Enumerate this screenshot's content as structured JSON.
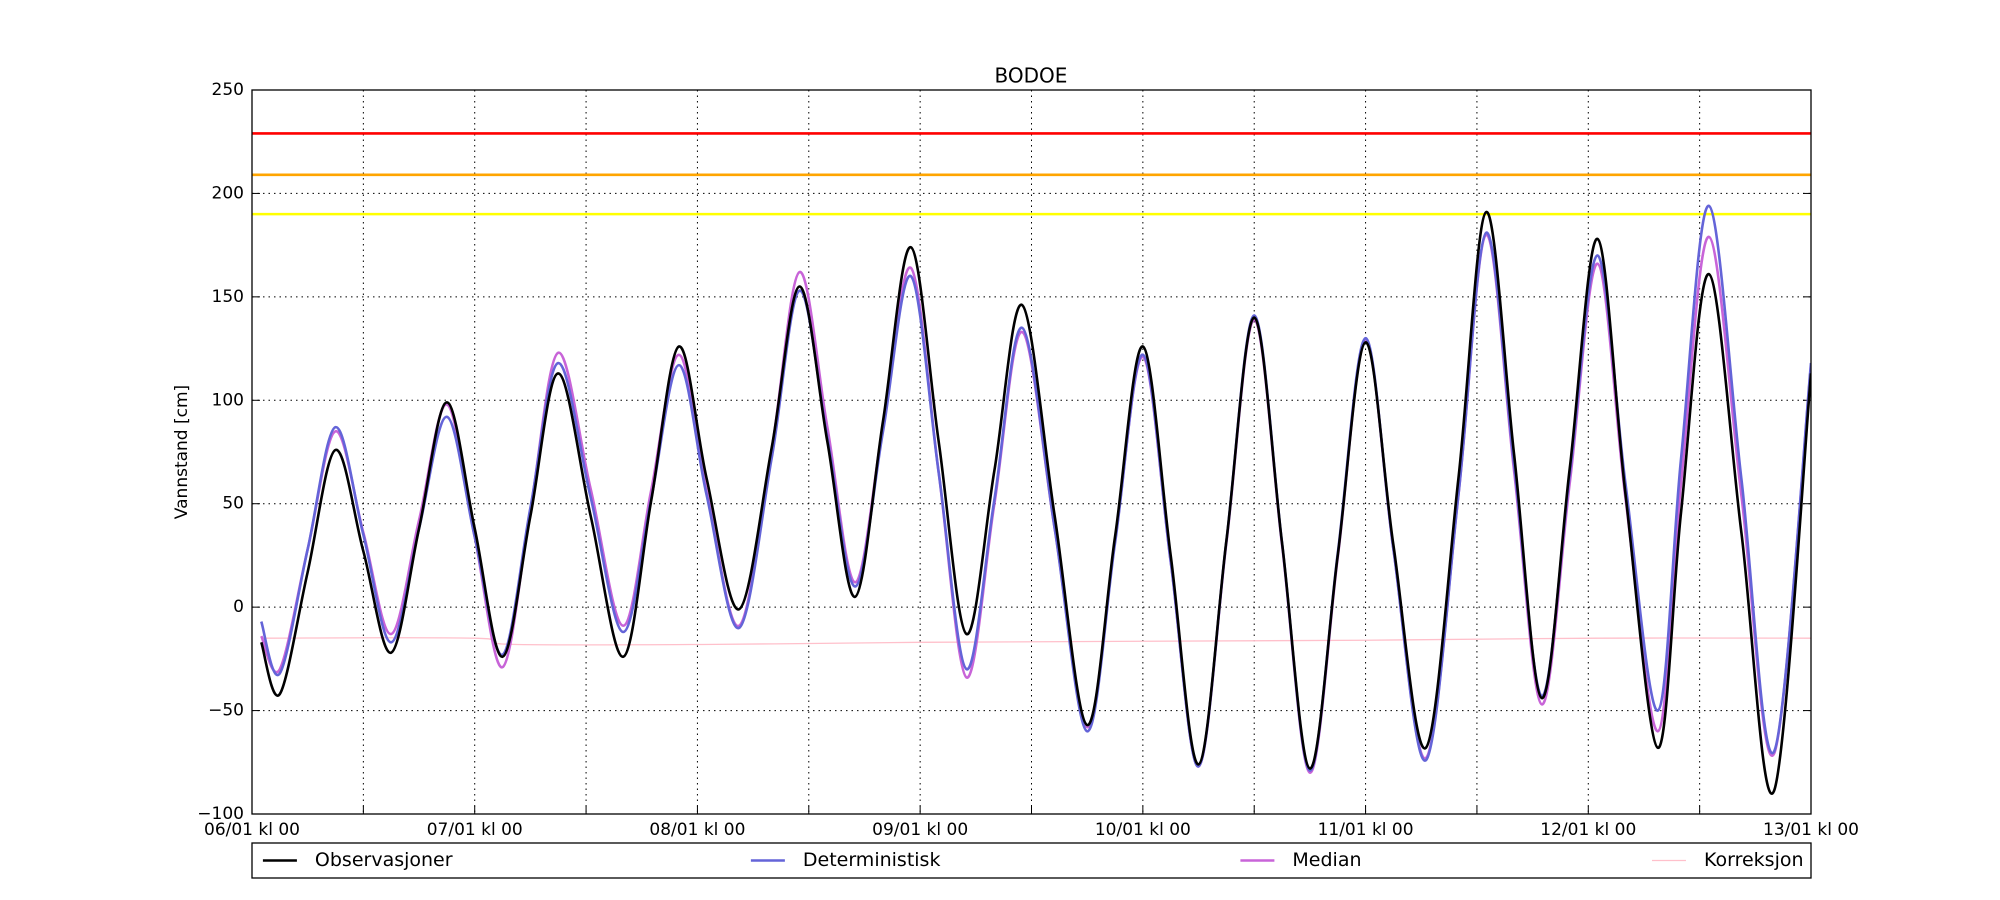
{
  "chart_data": {
    "type": "line",
    "title": "BODOE",
    "ylabel": "Vannstand [cm]",
    "x": [
      1,
      3,
      6,
      9,
      12,
      15,
      18,
      21,
      24,
      27,
      30,
      33,
      36.5,
      40,
      43,
      46,
      49,
      52.5,
      56,
      59,
      62,
      65,
      68,
      71,
      74,
      77,
      80,
      83,
      86.5,
      90,
      93,
      96,
      99,
      102,
      105,
      108,
      111,
      114,
      117,
      120,
      123,
      126.5,
      130,
      133,
      136,
      139,
      142,
      145,
      148,
      151.5,
      154,
      157,
      160.5,
      164,
      168
    ],
    "series": [
      {
        "name": "Observasjoner",
        "color": "#000000",
        "values": [
          -17,
          -42,
          17,
          76,
          27,
          -22,
          38,
          99,
          38,
          -24,
          44,
          113,
          44,
          -24,
          51,
          126,
          62,
          -1,
          77,
          155,
          80,
          5,
          90,
          174,
          80,
          -13,
          66,
          146,
          44,
          -57,
          34,
          126,
          25,
          -76,
          32,
          140,
          31,
          -78,
          25,
          128,
          30,
          -68,
          62,
          191,
          74,
          -44,
          67,
          178,
          55,
          -68,
          46,
          161,
          36,
          -89,
          113
        ]
      },
      {
        "name": "Deterministisk",
        "color": "#6464d8",
        "values": [
          -7,
          -32,
          28,
          87,
          35,
          -17,
          38,
          92,
          34,
          -23,
          48,
          118,
          53,
          -12,
          52,
          117,
          54,
          -10,
          72,
          153,
          82,
          10,
          85,
          160,
          65,
          -30,
          52,
          135,
          38,
          -60,
          31,
          122,
          22,
          -77,
          32,
          141,
          31,
          -79,
          26,
          130,
          28,
          -74,
          54,
          181,
          69,
          -43,
          64,
          170,
          60,
          -50,
          72,
          194,
          62,
          -70,
          118
        ]
      },
      {
        "name": "Median",
        "color": "#c864d8",
        "values": [
          -14,
          -30,
          28,
          85,
          36,
          -13,
          42,
          98,
          34,
          -29,
          47,
          123,
          57,
          -9,
          56,
          122,
          56,
          -9,
          76,
          162,
          87,
          12,
          88,
          164,
          65,
          -34,
          50,
          133,
          38,
          -58,
          32,
          121,
          22,
          -77,
          31,
          139,
          30,
          -80,
          24,
          129,
          28,
          -73,
          54,
          180,
          66,
          -47,
          60,
          166,
          53,
          -60,
          60,
          179,
          54,
          -71,
          117
        ]
      },
      {
        "name": "Korreksjon",
        "color": "#ffc0cb",
        "x": [
          1,
          24,
          28,
          50,
          72,
          120,
          145,
          168
        ],
        "values": [
          -15,
          -15,
          -18,
          -18,
          -17,
          -16,
          -15,
          -15
        ]
      }
    ],
    "thresholds": [
      {
        "value": 229,
        "color": "#ff0000"
      },
      {
        "value": 209,
        "color": "#ffa500"
      },
      {
        "value": 190,
        "color": "#ffff00"
      }
    ],
    "xlim": [
      0,
      168
    ],
    "xticks": [
      {
        "value": 0,
        "label": "06/01 kl 00"
      },
      {
        "value": 24,
        "label": "07/01 kl 00"
      },
      {
        "value": 48,
        "label": "08/01 kl 00"
      },
      {
        "value": 72,
        "label": "09/01 kl 00"
      },
      {
        "value": 96,
        "label": "10/01 kl 00"
      },
      {
        "value": 120,
        "label": "11/01 kl 00"
      },
      {
        "value": 144,
        "label": "12/01 kl 00"
      },
      {
        "value": 168,
        "label": "13/01 kl 00"
      }
    ],
    "xminor": [
      12,
      36,
      60,
      84,
      108,
      132,
      156
    ],
    "ylim": [
      -100,
      250
    ],
    "yticks": [
      {
        "value": -100,
        "label": "−100"
      },
      {
        "value": -50,
        "label": "−50"
      },
      0,
      50,
      100,
      150,
      200,
      250
    ],
    "grid": true,
    "legend": "bottom-outside"
  }
}
